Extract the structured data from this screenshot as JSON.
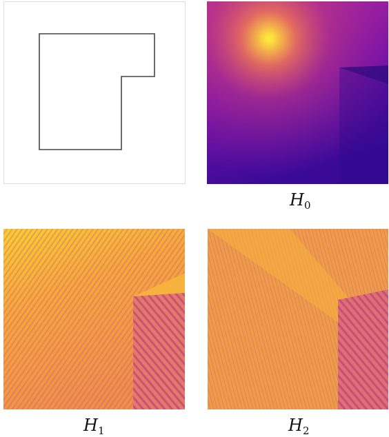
{
  "panels": [
    {
      "label_main": "H",
      "label_sub": "0"
    },
    {
      "label_main": "H",
      "label_sub": "1"
    },
    {
      "label_main": "H",
      "label_sub": "2"
    }
  ]
}
